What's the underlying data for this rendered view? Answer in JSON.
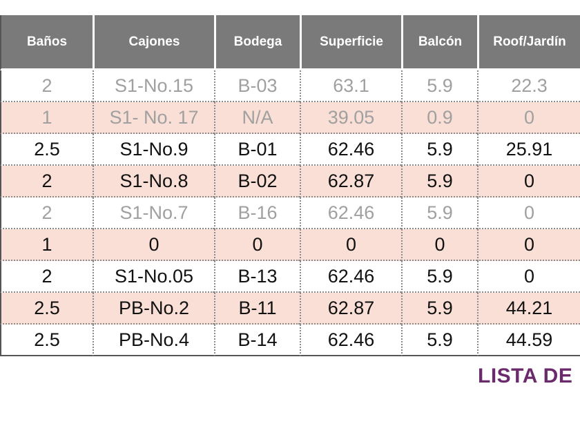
{
  "table": {
    "headers": [
      "Baños",
      "Cajones",
      "Bodega",
      "Superficie",
      "Balcón",
      "Roof/Jardín"
    ],
    "rows": [
      {
        "cells": [
          "2",
          "S1-No.15",
          "B-03",
          "63.1",
          "5.9",
          "22.3"
        ],
        "muted": true
      },
      {
        "cells": [
          "1",
          "S1- No. 17",
          "N/A",
          "39.05",
          "0.9",
          "0"
        ],
        "muted": true
      },
      {
        "cells": [
          "2.5",
          "S1-No.9",
          "B-01",
          "62.46",
          "5.9",
          "25.91"
        ],
        "muted": false
      },
      {
        "cells": [
          "2",
          "S1-No.8",
          "B-02",
          "62.87",
          "5.9",
          "0"
        ],
        "muted": false
      },
      {
        "cells": [
          "2",
          "S1-No.7",
          "B-16",
          "62.46",
          "5.9",
          "0"
        ],
        "muted": true
      },
      {
        "cells": [
          "1",
          "0",
          "0",
          "0",
          "0",
          "0"
        ],
        "muted": false
      },
      {
        "cells": [
          "2",
          "S1-No.05",
          "B-13",
          "62.46",
          "5.9",
          "0"
        ],
        "muted": false
      },
      {
        "cells": [
          "2.5",
          "PB-No.2",
          "B-11",
          "62.87",
          "5.9",
          "44.21"
        ],
        "muted": false
      },
      {
        "cells": [
          "2.5",
          "PB-No.4",
          "B-14",
          "62.46",
          "5.9",
          "44.59"
        ],
        "muted": false
      }
    ]
  },
  "footer": {
    "lista_label": "LISTA DE"
  },
  "colors": {
    "header_bg": "#7a7a7a",
    "row_alt_bg": "#f9dfd5",
    "muted_text": "#a0a0a0",
    "lista_color": "#6b2a6b"
  }
}
